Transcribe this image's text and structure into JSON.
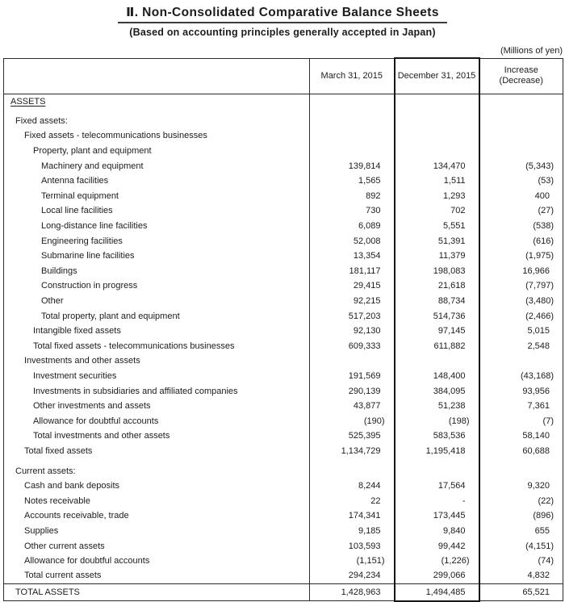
{
  "header": {
    "title": "Ⅱ. Non-Consolidated Comparative Balance Sheets",
    "subtitle": "(Based on accounting principles generally accepted in Japan)",
    "units_note": "(Millions of yen)"
  },
  "table": {
    "columns": {
      "march": "March 31, 2015",
      "december": "December 31, 2015",
      "increase_line1": "Increase",
      "increase_line2": "(Decrease)"
    },
    "rows": [
      {
        "label": "ASSETS",
        "indent": 0,
        "underline": true,
        "march": "",
        "december": "",
        "increase": ""
      },
      {
        "label": "Fixed assets:",
        "indent": 1,
        "gap_above": true,
        "march": "",
        "december": "",
        "increase": ""
      },
      {
        "label": "Fixed assets - telecommunications businesses",
        "indent": 2,
        "march": "",
        "december": "",
        "increase": ""
      },
      {
        "label": "Property, plant and equipment",
        "indent": 3,
        "march": "",
        "december": "",
        "increase": ""
      },
      {
        "label": "Machinery and equipment",
        "indent": 4,
        "march": "139,814",
        "december": "134,470",
        "increase": "(5,343)"
      },
      {
        "label": "Antenna facilities",
        "indent": 4,
        "march": "1,565",
        "december": "1,511",
        "increase": "(53)"
      },
      {
        "label": "Terminal equipment",
        "indent": 4,
        "march": "892",
        "december": "1,293",
        "increase": "400"
      },
      {
        "label": "Local line facilities",
        "indent": 4,
        "march": "730",
        "december": "702",
        "increase": "(27)"
      },
      {
        "label": "Long-distance line facilities",
        "indent": 4,
        "march": "6,089",
        "december": "5,551",
        "increase": "(538)"
      },
      {
        "label": "Engineering facilities",
        "indent": 4,
        "march": "52,008",
        "december": "51,391",
        "increase": "(616)"
      },
      {
        "label": "Submarine line facilities",
        "indent": 4,
        "march": "13,354",
        "december": "11,379",
        "increase": "(1,975)"
      },
      {
        "label": "Buildings",
        "indent": 4,
        "march": "181,117",
        "december": "198,083",
        "increase": "16,966"
      },
      {
        "label": "Construction in progress",
        "indent": 4,
        "march": "29,415",
        "december": "21,618",
        "increase": "(7,797)"
      },
      {
        "label": "Other",
        "indent": 4,
        "march": "92,215",
        "december": "88,734",
        "increase": "(3,480)"
      },
      {
        "label": "Total property, plant and equipment",
        "indent": 4,
        "march": "517,203",
        "december": "514,736",
        "increase": "(2,466)"
      },
      {
        "label": "Intangible fixed assets",
        "indent": 3,
        "march": "92,130",
        "december": "97,145",
        "increase": "5,015"
      },
      {
        "label": "Total fixed assets - telecommunications businesses",
        "indent": 3,
        "march": "609,333",
        "december": "611,882",
        "increase": "2,548"
      },
      {
        "label": "Investments and other assets",
        "indent": 2,
        "march": "",
        "december": "",
        "increase": ""
      },
      {
        "label": "Investment securities",
        "indent": 3,
        "march": "191,569",
        "december": "148,400",
        "increase": "(43,168)"
      },
      {
        "label": "Investments in subsidiaries and affiliated companies",
        "indent": 3,
        "march": "290,139",
        "december": "384,095",
        "increase": "93,956"
      },
      {
        "label": "Other investments and assets",
        "indent": 3,
        "march": "43,877",
        "december": "51,238",
        "increase": "7,361"
      },
      {
        "label": "Allowance for doubtful accounts",
        "indent": 3,
        "march": "(190)",
        "december": "(198)",
        "increase": "(7)"
      },
      {
        "label": "Total investments and other assets",
        "indent": 3,
        "march": "525,395",
        "december": "583,536",
        "increase": "58,140"
      },
      {
        "label": "Total fixed assets",
        "indent": 2,
        "march": "1,134,729",
        "december": "1,195,418",
        "increase": "60,688"
      },
      {
        "label": "Current assets:",
        "indent": 1,
        "gap_above": true,
        "march": "",
        "december": "",
        "increase": ""
      },
      {
        "label": "Cash and bank deposits",
        "indent": 2,
        "march": "8,244",
        "december": "17,564",
        "increase": "9,320"
      },
      {
        "label": "Notes receivable",
        "indent": 2,
        "march": "22",
        "december": "-",
        "increase": "(22)"
      },
      {
        "label": "Accounts receivable, trade",
        "indent": 2,
        "march": "174,341",
        "december": "173,445",
        "increase": "(896)"
      },
      {
        "label": "Supplies",
        "indent": 2,
        "march": "9,185",
        "december": "9,840",
        "increase": "655"
      },
      {
        "label": "Other current assets",
        "indent": 2,
        "march": "103,593",
        "december": "99,442",
        "increase": "(4,151)"
      },
      {
        "label": "Allowance for doubtful accounts",
        "indent": 2,
        "march": "(1,151)",
        "december": "(1,226)",
        "increase": "(74)"
      },
      {
        "label": "Total current assets",
        "indent": 2,
        "march": "294,234",
        "december": "299,066",
        "increase": "4,832"
      },
      {
        "label": "TOTAL ASSETS",
        "indent": 1,
        "grand_total": true,
        "march": "1,428,963",
        "december": "1,494,485",
        "increase": "65,521"
      }
    ]
  }
}
